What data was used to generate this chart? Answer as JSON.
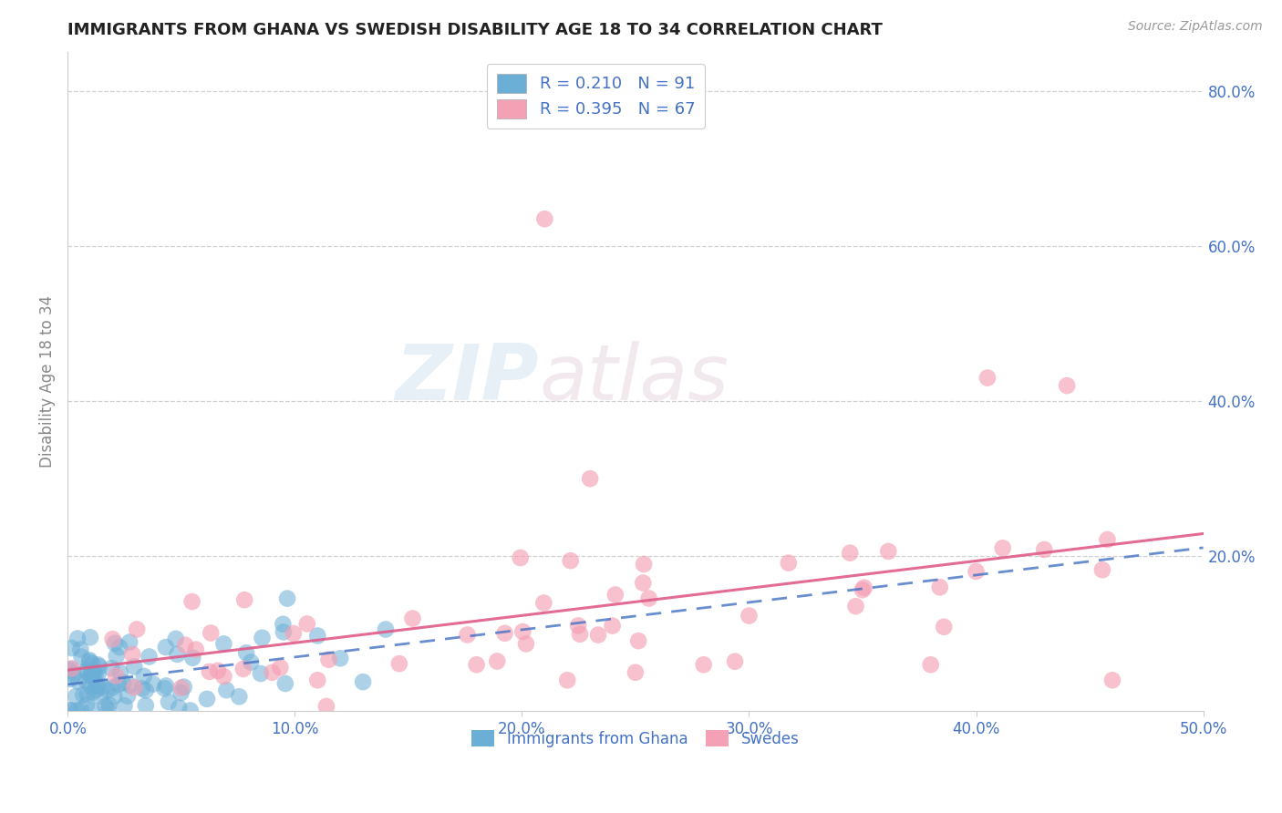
{
  "title": "IMMIGRANTS FROM GHANA VS SWEDISH DISABILITY AGE 18 TO 34 CORRELATION CHART",
  "source": "Source: ZipAtlas.com",
  "ylabel_left": "Disability Age 18 to 34",
  "legend_label1": "R = 0.210   N = 91",
  "legend_label2": "R = 0.395   N = 67",
  "legend_bottom_label1": "Immigrants from Ghana",
  "legend_bottom_label2": "Swedes",
  "color_blue": "#6baed6",
  "color_pink": "#f4a0b5",
  "color_blue_text": "#4472C4",
  "color_pink_text": "#E05C8A",
  "watermark_zip": "ZIP",
  "watermark_atlas": "atlas",
  "xlim": [
    0.0,
    0.5
  ],
  "ylim": [
    0.0,
    0.85
  ],
  "yticks": [
    0.2,
    0.4,
    0.6,
    0.8
  ],
  "xticks": [
    0.0,
    0.1,
    0.2,
    0.3,
    0.4,
    0.5
  ],
  "grid_color": "#d0d0d0",
  "title_fontsize": 13,
  "tick_fontsize": 12
}
